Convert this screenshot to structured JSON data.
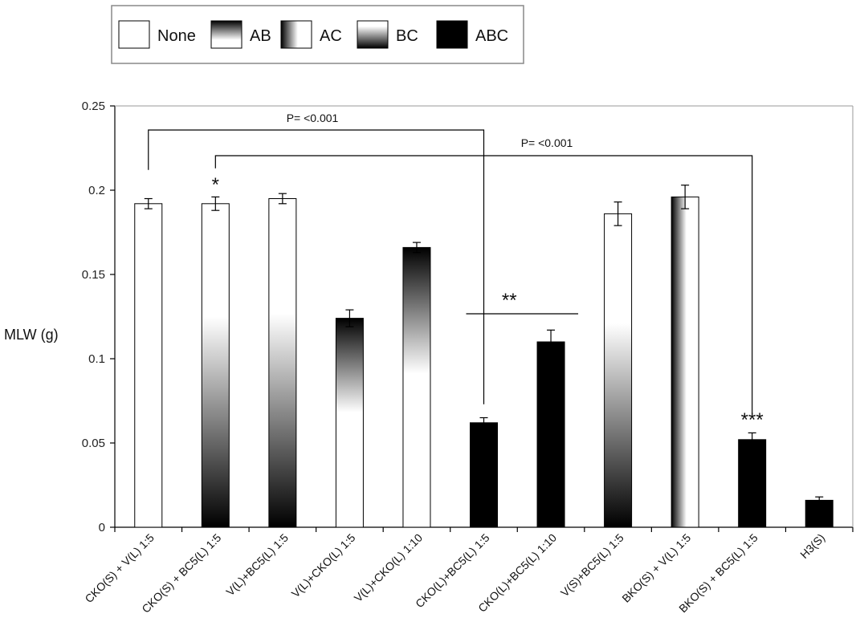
{
  "chart_data": {
    "type": "bar",
    "title": "",
    "xlabel": "",
    "ylabel": "MLW (g)",
    "ylim": [
      0,
      0.25
    ],
    "yticks": [
      "0",
      "0.05",
      "0.1",
      "0.15",
      "0.2",
      "0.25"
    ],
    "grid": false,
    "legend_position": "top-left",
    "legend": [
      {
        "key": "none",
        "label": "None"
      },
      {
        "key": "ab",
        "label": "AB"
      },
      {
        "key": "ac",
        "label": "AC"
      },
      {
        "key": "bc",
        "label": "BC"
      },
      {
        "key": "abc",
        "label": "ABC"
      }
    ],
    "categories": [
      "CKO(S) + V(L) 1:5",
      "CKO(S) + BC5(L) 1:5",
      "V(L)+BC5(L) 1:5",
      "V(L)+CKO(L) 1:5",
      "V(L)+CKO(L) 1:10",
      "CKO(L)+BC5(L) 1:5",
      "CKO(L)+BC5(L) 1:10",
      "V(S)+BC5(L) 1:5",
      "BKO(S) + V(L) 1:5",
      "BKO(S) + BC5(L) 1:5",
      "H3(S)"
    ],
    "values": [
      0.192,
      0.192,
      0.195,
      0.124,
      0.166,
      0.062,
      0.11,
      0.186,
      0.196,
      0.052,
      0.016
    ],
    "errors": [
      0.003,
      0.004,
      0.003,
      0.005,
      0.003,
      0.003,
      0.007,
      0.007,
      0.007,
      0.004,
      0.002
    ],
    "fills": [
      "none",
      "bc",
      "bc",
      "ab",
      "ab",
      "abc",
      "abc",
      "bc",
      "ac",
      "abc",
      "abc"
    ],
    "annotations": {
      "p1_label": "P= <0.001",
      "p2_label": "P= <0.001",
      "star1": "*",
      "star2": "**",
      "star3": "***"
    }
  },
  "colors": {
    "axis": "#000000",
    "bar_outline": "#000000",
    "dark": "#000000",
    "light": "#ffffff"
  }
}
